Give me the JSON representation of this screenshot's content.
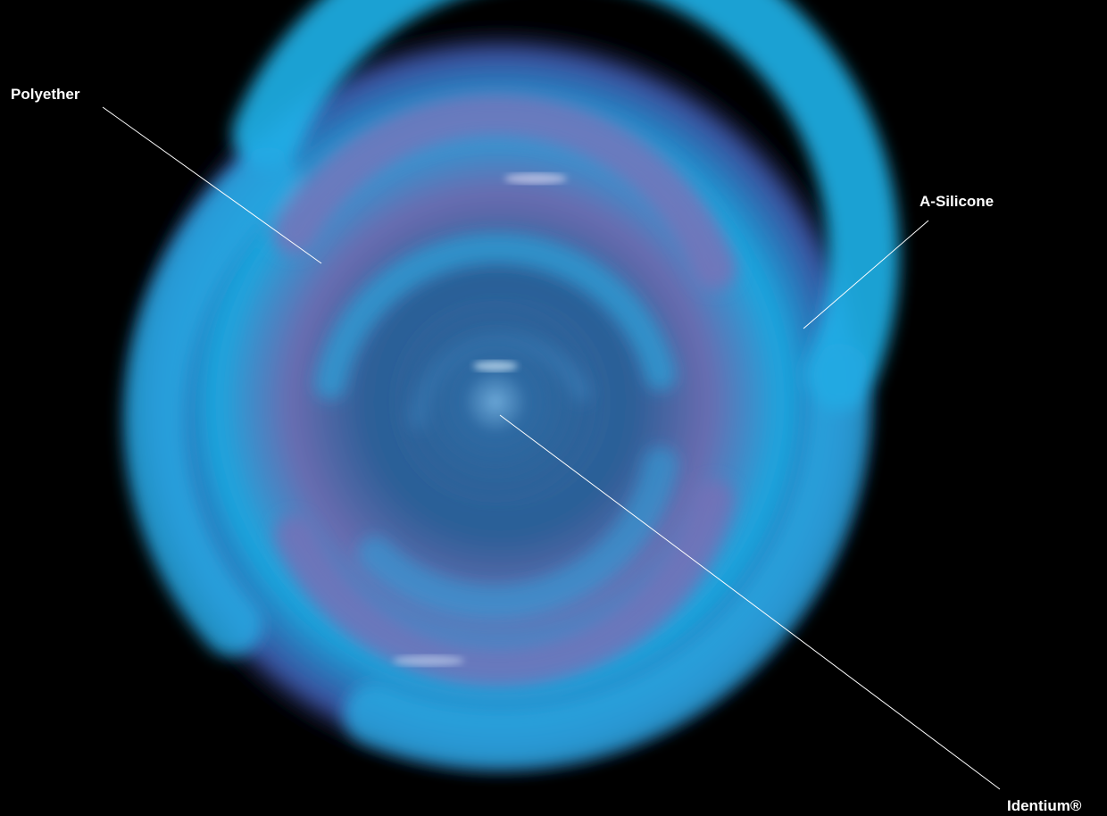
{
  "labels": [
    "Polyether",
    "A-Silicone",
    "Identium®"
  ]
}
